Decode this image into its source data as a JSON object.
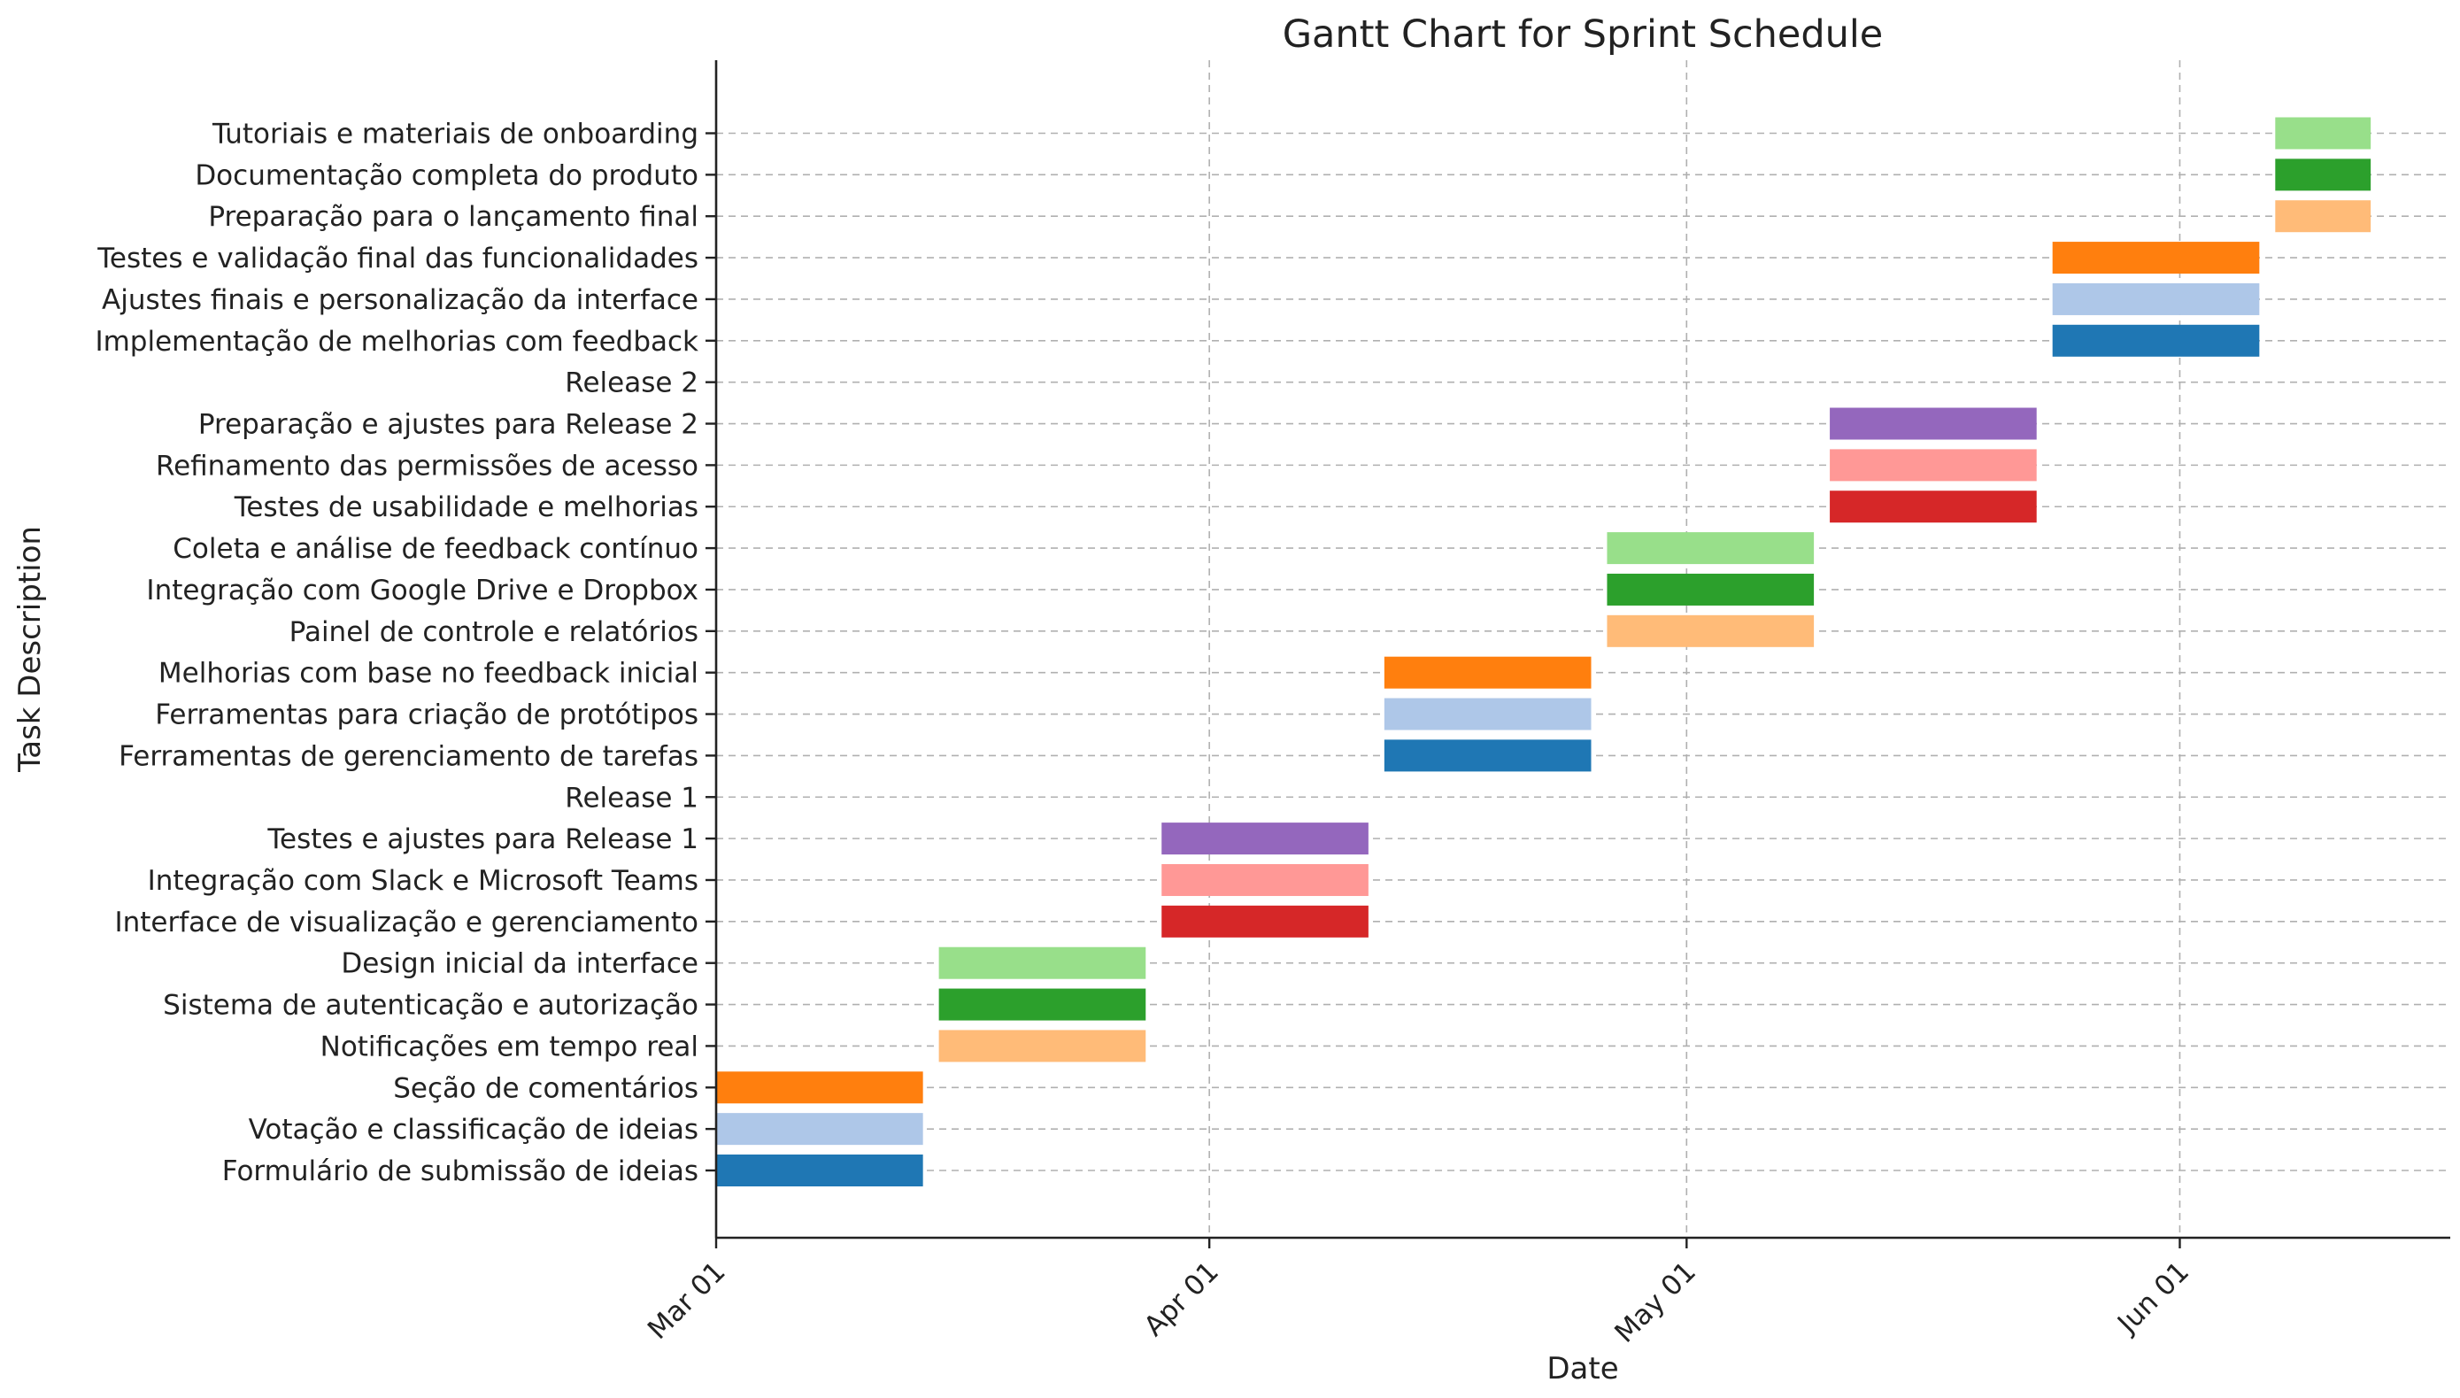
{
  "chart_data": {
    "type": "gantt",
    "title": "Gantt Chart for Sprint Schedule",
    "xlabel": "Date",
    "ylabel": "Task Description",
    "xlim": [
      "2024-03-01",
      "2024-06-18"
    ],
    "x_ticks": [
      {
        "date": "2024-03-01",
        "label": "Mar 01"
      },
      {
        "date": "2024-04-01",
        "label": "Apr 01"
      },
      {
        "date": "2024-05-01",
        "label": "May 01"
      },
      {
        "date": "2024-06-01",
        "label": "Jun 01"
      }
    ],
    "grid": true,
    "tasks": [
      {
        "name": "Formulário de submissão de ideias",
        "start": "2024-03-01",
        "end": "2024-03-14",
        "color": "#1f77b4"
      },
      {
        "name": "Votação e classificação de ideias",
        "start": "2024-03-01",
        "end": "2024-03-14",
        "color": "#aec7e8"
      },
      {
        "name": "Seção de comentários",
        "start": "2024-03-01",
        "end": "2024-03-14",
        "color": "#ff7f0e"
      },
      {
        "name": "Notificações em tempo real",
        "start": "2024-03-15",
        "end": "2024-03-28",
        "color": "#ffbb78"
      },
      {
        "name": "Sistema de autenticação e autorização",
        "start": "2024-03-15",
        "end": "2024-03-28",
        "color": "#2ca02c"
      },
      {
        "name": "Design inicial da interface",
        "start": "2024-03-15",
        "end": "2024-03-28",
        "color": "#98df8a"
      },
      {
        "name": "Interface de visualização e gerenciamento",
        "start": "2024-03-29",
        "end": "2024-04-11",
        "color": "#d62728"
      },
      {
        "name": "Integração com Slack e Microsoft Teams",
        "start": "2024-03-29",
        "end": "2024-04-11",
        "color": "#ff9896"
      },
      {
        "name": "Testes e ajustes para Release 1",
        "start": "2024-03-29",
        "end": "2024-04-11",
        "color": "#9467bd"
      },
      {
        "name": "Release 1",
        "start": null,
        "end": null,
        "color": null
      },
      {
        "name": "Ferramentas de gerenciamento de tarefas",
        "start": "2024-04-12",
        "end": "2024-04-25",
        "color": "#1f77b4"
      },
      {
        "name": "Ferramentas para criação de protótipos",
        "start": "2024-04-12",
        "end": "2024-04-25",
        "color": "#aec7e8"
      },
      {
        "name": "Melhorias com base no feedback inicial",
        "start": "2024-04-12",
        "end": "2024-04-25",
        "color": "#ff7f0e"
      },
      {
        "name": "Painel de controle e relatórios",
        "start": "2024-04-26",
        "end": "2024-05-09",
        "color": "#ffbb78"
      },
      {
        "name": "Integração com Google Drive e Dropbox",
        "start": "2024-04-26",
        "end": "2024-05-09",
        "color": "#2ca02c"
      },
      {
        "name": "Coleta e análise de feedback contínuo",
        "start": "2024-04-26",
        "end": "2024-05-09",
        "color": "#98df8a"
      },
      {
        "name": "Testes de usabilidade e melhorias",
        "start": "2024-05-10",
        "end": "2024-05-23",
        "color": "#d62728"
      },
      {
        "name": "Refinamento das permissões de acesso",
        "start": "2024-05-10",
        "end": "2024-05-23",
        "color": "#ff9896"
      },
      {
        "name": "Preparação e ajustes para Release 2",
        "start": "2024-05-10",
        "end": "2024-05-23",
        "color": "#9467bd"
      },
      {
        "name": "Release 2",
        "start": null,
        "end": null,
        "color": null
      },
      {
        "name": "Implementação de melhorias com feedback",
        "start": "2024-05-24",
        "end": "2024-06-06",
        "color": "#1f77b4"
      },
      {
        "name": "Ajustes finais e personalização da interface",
        "start": "2024-05-24",
        "end": "2024-06-06",
        "color": "#aec7e8"
      },
      {
        "name": "Testes e validação final das funcionalidades",
        "start": "2024-05-24",
        "end": "2024-06-06",
        "color": "#ff7f0e"
      },
      {
        "name": "Preparação para o lançamento final",
        "start": "2024-06-07",
        "end": "2024-06-13",
        "color": "#ffbb78"
      },
      {
        "name": "Documentação completa do produto",
        "start": "2024-06-07",
        "end": "2024-06-13",
        "color": "#2ca02c"
      },
      {
        "name": "Tutoriais e materiais de onboarding",
        "start": "2024-06-07",
        "end": "2024-06-13",
        "color": "#98df8a"
      }
    ]
  }
}
